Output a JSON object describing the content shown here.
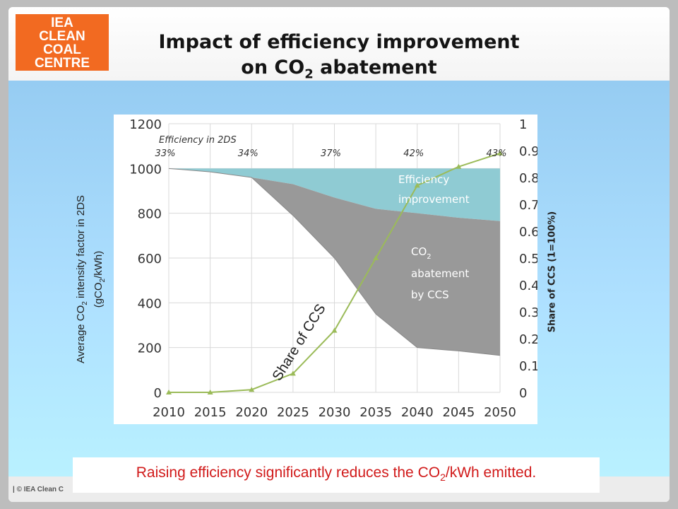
{
  "logo": {
    "line1": "IEA",
    "line2": "CLEAN",
    "line3": "COAL",
    "line4": "CENTRE"
  },
  "title": {
    "line1": "Impact of efficiency improvement",
    "line2_prefix": "on CO",
    "line2_sub": "2",
    "line2_suffix": " abatement"
  },
  "y_left_label": {
    "line1_prefix": "Average CO",
    "line1_sub": "2",
    "line1_suffix": " intensity factor in 2DS",
    "line2_prefix": "(gCO",
    "line2_sub": "2",
    "line2_suffix": "/kWh)"
  },
  "y_right_label": "Share of CCS (1=100%)",
  "caption": {
    "prefix": "Raising efficiency significantly reduces the CO",
    "sub": "2",
    "suffix": "/kWh emitted."
  },
  "footer": "| © IEA Clean C",
  "colors": {
    "efficiency": "#8fcbd3",
    "ccs": "#999999",
    "share_line": "#9bbb59",
    "accent_red": "#d11a1a",
    "logo_orange": "#f26a21"
  },
  "chart_data": {
    "type": "area",
    "x": [
      2010,
      2015,
      2020,
      2025,
      2030,
      2035,
      2040,
      2045,
      2050
    ],
    "x_ticks": [
      "2010",
      "2015",
      "2020",
      "2025",
      "2030",
      "2035",
      "2040",
      "2045",
      "2050"
    ],
    "ylim": [
      0,
      1200
    ],
    "y_ticks": [
      "0",
      "200",
      "400",
      "600",
      "800",
      "1000",
      "1200"
    ],
    "y2lim": [
      0,
      1
    ],
    "y2_ticks": [
      "0",
      "0.1",
      "0.2",
      "0.3",
      "0.4",
      "0.5",
      "0.6",
      "0.7",
      "0.8",
      "0.9",
      "1"
    ],
    "baseline": 1000,
    "intensity_without_ccs": [
      1000,
      985,
      960,
      930,
      870,
      820,
      800,
      780,
      765
    ],
    "intensity_with_ccs": [
      1000,
      985,
      960,
      790,
      600,
      350,
      200,
      185,
      165
    ],
    "share_of_ccs": [
      0,
      0,
      0.01,
      0.07,
      0.23,
      0.5,
      0.77,
      0.84,
      0.89
    ],
    "efficiency_header": "Efficiency in 2DS",
    "efficiency_labels": [
      {
        "x": 2010,
        "label": "33%"
      },
      {
        "x": 2020,
        "label": "34%"
      },
      {
        "x": 2030,
        "label": "37%"
      },
      {
        "x": 2040,
        "label": "42%"
      },
      {
        "x": 2050,
        "label": "43%"
      }
    ],
    "annotations": {
      "efficiency_line1": "Efficiency",
      "efficiency_line2": "improvement",
      "ccs_line1_prefix": "CO",
      "ccs_line1_sub": "2",
      "ccs_line2": "abatement",
      "ccs_line3": "by CCS",
      "share_label": "Share of CCS"
    }
  }
}
